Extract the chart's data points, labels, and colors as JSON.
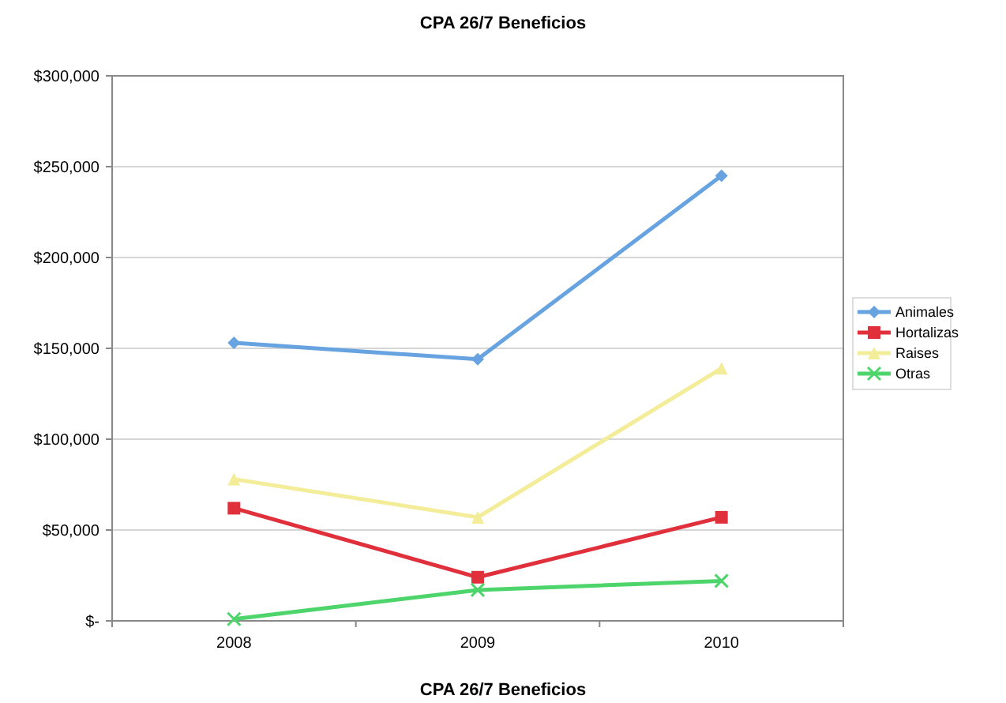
{
  "chart_data": {
    "type": "line",
    "title": "CPA 26/7 Beneficios",
    "xlabel": "CPA 26/7 Beneficios",
    "categories": [
      "2008",
      "2009",
      "2010"
    ],
    "series": [
      {
        "name": "Animales",
        "color": "#66a3e0",
        "marker": "diamond",
        "values": [
          153000,
          144000,
          245000
        ]
      },
      {
        "name": "Hortalizas",
        "color": "#e0303c",
        "marker": "square",
        "values": [
          62000,
          24000,
          57000
        ]
      },
      {
        "name": "Raises",
        "color": "#f3ec98",
        "marker": "triangle",
        "values": [
          78000,
          57000,
          139000
        ]
      },
      {
        "name": "Otras",
        "color": "#4dd56c",
        "marker": "cross",
        "values": [
          1000,
          17000,
          22000
        ]
      }
    ],
    "ylim": [
      0,
      300000
    ],
    "yticks": [
      {
        "value": 0,
        "label": "$-"
      },
      {
        "value": 50000,
        "label": "$50,000"
      },
      {
        "value": 100000,
        "label": "$100,000"
      },
      {
        "value": 150000,
        "label": "$150,000"
      },
      {
        "value": 200000,
        "label": "$200,000"
      },
      {
        "value": 250000,
        "label": "$250,000"
      },
      {
        "value": 300000,
        "label": "$300,000"
      }
    ],
    "grid": "y",
    "legend": "right"
  }
}
